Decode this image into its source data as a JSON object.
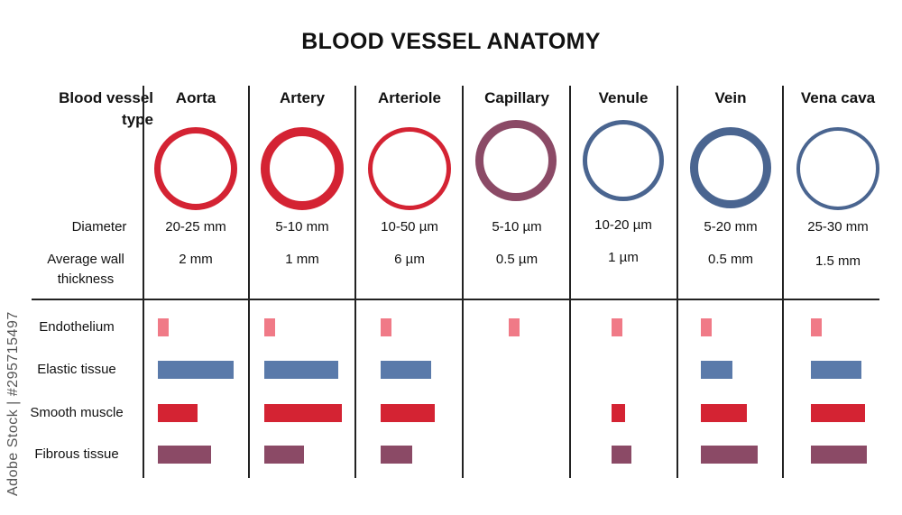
{
  "title": "BLOOD VESSEL ANATOMY",
  "row_labels": {
    "type": "Blood vessel type",
    "diameter": "Diameter",
    "wall": "Average wall thickness"
  },
  "layers": [
    "Endothelium",
    "Elastic tissue",
    "Smooth muscle",
    "Fibrous tissue"
  ],
  "layer_colors": [
    "#f07a87",
    "#5a7aaa",
    "#d42333",
    "#8b4a66"
  ],
  "vessels": [
    {
      "name": "Aorta",
      "diameter": "20-25 mm",
      "wall": "2 mm",
      "ring_color": "#d42333",
      "ring_thickness": 7,
      "layers": [
        1,
        10,
        5,
        7
      ]
    },
    {
      "name": "Artery",
      "diameter": "5-10 mm",
      "wall": "1 mm",
      "ring_color": "#d42333",
      "ring_thickness": 10,
      "layers": [
        1,
        9.5,
        10,
        5
      ]
    },
    {
      "name": "Arteriole",
      "diameter": "10-50 µm",
      "wall": "6 µm",
      "ring_color": "#d42333",
      "ring_thickness": 5,
      "layers": [
        1,
        6.5,
        7,
        4
      ]
    },
    {
      "name": "Capillary",
      "diameter": "5-10 µm",
      "wall": "0.5 µm",
      "ring_color": "#8b4a66",
      "ring_thickness": 9,
      "layers": [
        1,
        0,
        0,
        0
      ]
    },
    {
      "name": "Venule",
      "diameter": "10-20 µm",
      "wall": "1 µm",
      "ring_color": "#4a6590",
      "ring_thickness": 5,
      "layers": [
        1,
        0,
        1.5,
        2.5
      ]
    },
    {
      "name": "Vein",
      "diameter": "5-20 mm",
      "wall": "0.5 mm",
      "ring_color": "#4a6590",
      "ring_thickness": 9,
      "layers": [
        1,
        4,
        6,
        7.5
      ]
    },
    {
      "name": "Vena cava",
      "diameter": "25-30 mm",
      "wall": "1.5 mm",
      "ring_color": "#4a6590",
      "ring_thickness": 4,
      "layers": [
        1,
        6.5,
        7,
        7.5
      ]
    }
  ],
  "watermark": "Adobe Stock | #295715497"
}
